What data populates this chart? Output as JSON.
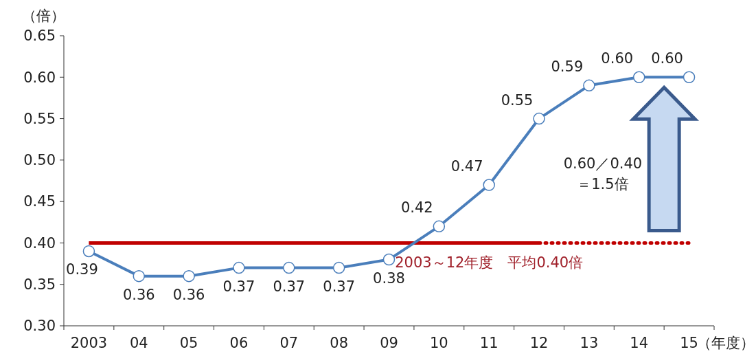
{
  "chart_data": {
    "type": "line",
    "ylabel": "（倍）",
    "xlabel": "（年度）",
    "categories": [
      "2003",
      "04",
      "05",
      "06",
      "07",
      "08",
      "09",
      "10",
      "11",
      "12",
      "13",
      "14",
      "15"
    ],
    "ylim": [
      0.3,
      0.65
    ],
    "yticks": [
      {
        "value": 0.3,
        "label": "0.30"
      },
      {
        "value": 0.35,
        "label": "0.35"
      },
      {
        "value": 0.4,
        "label": "0.40"
      },
      {
        "value": 0.45,
        "label": "0.45"
      },
      {
        "value": 0.5,
        "label": "0.50"
      },
      {
        "value": 0.55,
        "label": "0.55"
      },
      {
        "value": 0.6,
        "label": "0.60"
      },
      {
        "value": 0.65,
        "label": "0.65"
      }
    ],
    "grid": false,
    "series": [
      {
        "color": "#4a7ebb",
        "marker": "circle",
        "line_style": "solid",
        "values": [
          0.39,
          0.36,
          0.36,
          0.37,
          0.37,
          0.37,
          0.38,
          0.42,
          0.47,
          0.55,
          0.59,
          0.6,
          0.6
        ],
        "value_labels": [
          "0.39",
          "0.36",
          "0.36",
          "0.37",
          "0.37",
          "0.37",
          "0.38",
          "0.42",
          "0.47",
          "0.55",
          "0.59",
          "0.60",
          "0.60"
        ]
      },
      {
        "color": "#c00000",
        "marker": "none",
        "line_style": "solid",
        "values": [
          0.4,
          0.4,
          0.4,
          0.4,
          0.4,
          0.4,
          0.4,
          0.4,
          0.4,
          0.4,
          null,
          null,
          null
        ]
      },
      {
        "color": "#c00000",
        "marker": "none",
        "line_style": "dotted",
        "values": [
          null,
          null,
          null,
          null,
          null,
          null,
          null,
          null,
          null,
          0.4,
          0.4,
          0.4,
          0.4
        ]
      }
    ],
    "annotations": [
      {
        "text": "2003～12年度　平均0.40倍",
        "x": "11",
        "y": 0.4
      },
      "0.60／0.40\n＝1.5倍"
    ]
  }
}
